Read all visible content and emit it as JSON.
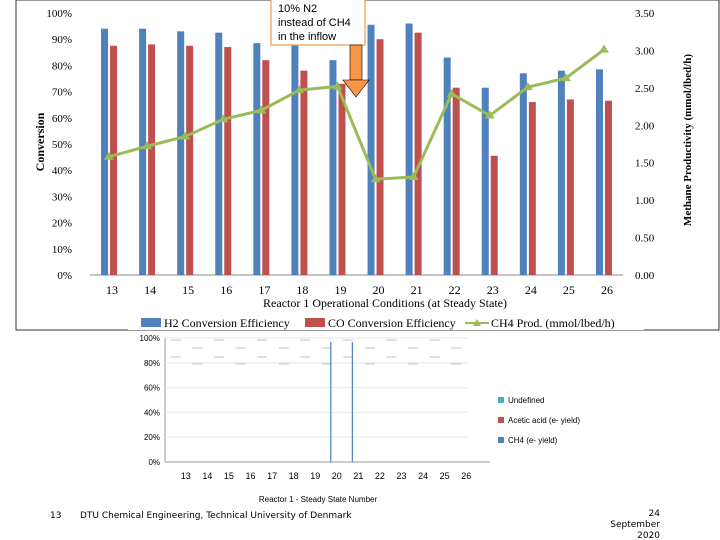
{
  "slide": {
    "page_number": "13",
    "organization": "DTU Chemical Engineering, Technical University of Denmark",
    "date_line1": "24",
    "date_line2": "September",
    "date_line3": "2020"
  },
  "chart_data": [
    {
      "type": "bar",
      "categories": [
        "13",
        "14",
        "15",
        "16",
        "17",
        "18",
        "19",
        "20",
        "21",
        "22",
        "23",
        "24",
        "25",
        "26"
      ],
      "series": [
        {
          "name": "H2 Conversion Efficiency",
          "kind": "bar",
          "axis": "left",
          "color": "#4F81BD",
          "values": [
            94,
            94,
            93,
            92.5,
            88.5,
            88,
            82,
            95.5,
            96,
            83,
            71.5,
            77,
            78,
            78.5
          ]
        },
        {
          "name": "CO Conversion Efficiency",
          "kind": "bar",
          "axis": "left",
          "color": "#C0504D",
          "values": [
            87.5,
            88,
            87.5,
            87,
            82,
            78,
            73,
            90,
            92.5,
            71.5,
            45.5,
            66,
            67,
            66.5
          ]
        },
        {
          "name": "CH4 Prod. (mmol/lbed/h)",
          "kind": "line",
          "axis": "right",
          "color": "#9BBB59",
          "values": [
            1.58,
            1.72,
            1.85,
            2.08,
            2.2,
            2.47,
            2.52,
            1.28,
            1.31,
            2.42,
            2.13,
            2.51,
            2.63,
            3.01
          ]
        }
      ],
      "xlabel": "Reactor 1 Operational Conditions (at Steady State)",
      "ylabel": "Conversion",
      "y2label": "Methane Productivity (mmol/lbed/h)",
      "ylim": [
        0,
        100
      ],
      "y2lim": [
        0,
        3.5
      ],
      "yticks": [
        "0%",
        "10%",
        "20%",
        "30%",
        "40%",
        "50%",
        "60%",
        "70%",
        "80%",
        "90%",
        "100%"
      ],
      "y2ticks": [
        "0.00",
        "0.50",
        "1.00",
        "1.50",
        "2.00",
        "2.50",
        "3.00",
        "3.50"
      ],
      "annotation": {
        "text_lines": [
          "10% N2",
          "instead of CH4",
          "in the inflow"
        ],
        "category": "19",
        "color": "#F79646"
      },
      "legend_position": "bottom",
      "grid": false
    },
    {
      "type": "bar",
      "stacked": true,
      "categories": [
        "13",
        "14",
        "15",
        "16",
        "17",
        "18",
        "19",
        "20",
        "21",
        "22",
        "23",
        "24",
        "25",
        "26"
      ],
      "xlabel": "Reactor 1 - Steady State Number",
      "ylim": [
        0,
        100
      ],
      "yticks": [
        "0%",
        "20%",
        "40%",
        "60%",
        "80%",
        "100%"
      ],
      "legend_position": "right",
      "legend": [
        {
          "name": "Undefined",
          "color": "#4BACC6"
        },
        {
          "name": "Acetic acid (e- yield)",
          "color": "#C0504D"
        },
        {
          "name": "CH4 (e- yield)",
          "color": "#4F81BD"
        }
      ],
      "highlight_categories": [
        "20",
        "21"
      ],
      "highlight_color": "#4F81BD"
    }
  ]
}
